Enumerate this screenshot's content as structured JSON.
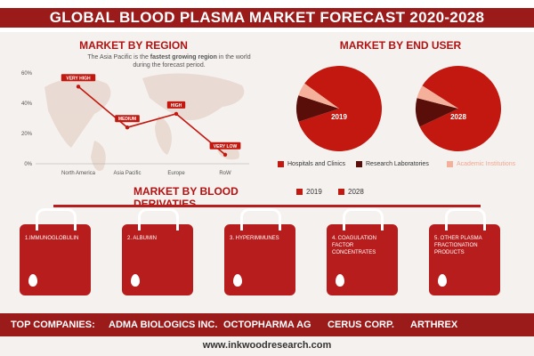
{
  "header": {
    "title": "GLOBAL BLOOD PLASMA MARKET FORECAST 2020-2028"
  },
  "region_section": {
    "title": "MARKET BY REGION",
    "note_prefix": "The Asia Pacific is the ",
    "note_bold": "fastest growing region",
    "note_suffix": " in the world during the forecast period."
  },
  "end_user_section": {
    "title": "MARKET BY END USER",
    "legend": [
      {
        "label": "Hospitals and Clinics",
        "color": "#c2180f"
      },
      {
        "label": "Research Laboratories",
        "color": "#5a0e0a"
      },
      {
        "label": "Academic Institutions",
        "color": "#f4b09a"
      }
    ]
  },
  "derivatives_section": {
    "title": "MARKET BY BLOOD DERIVATIES",
    "legend": [
      {
        "label": "2019",
        "color": "#c2180f"
      },
      {
        "label": "2028",
        "color": "#c2180f"
      }
    ],
    "bags": [
      "1.IMMUNOGLOBULIN",
      "2. ALBUMIN",
      "3. HYPERIMMUNES",
      "4. COAGULATION FACTOR CONCENTRATES",
      "5. OTHER PLASMA FRACTIONATION PRODUCTS"
    ]
  },
  "footer": {
    "label": "TOP COMPANIES:",
    "companies": [
      "ADMA BIOLOGICS INC.",
      "OCTOPHARMA AG",
      "CERUS CORP.",
      "ARTHREX"
    ],
    "website": "www.inkwoodresearch.com"
  },
  "chart_data": [
    {
      "type": "line",
      "title": "MARKET BY REGION",
      "categories": [
        "North America",
        "Asia Pacific",
        "Europe",
        "RoW"
      ],
      "values": [
        51,
        24,
        33,
        6
      ],
      "point_labels": [
        "VERY HIGH",
        "MEDIUM",
        "HIGH",
        "VERY LOW"
      ],
      "ylim": [
        0,
        60
      ],
      "yticks": [
        "0%",
        "20%",
        "40%",
        "60%"
      ],
      "color": "#c2180f"
    },
    {
      "type": "pie",
      "title": "2019",
      "labels": [
        "Hospitals and Clinics",
        "Research Laboratories",
        "Academic Institutions"
      ],
      "values": [
        85,
        10,
        5
      ],
      "colors": [
        "#c2180f",
        "#5a0e0a",
        "#f4b09a"
      ]
    },
    {
      "type": "pie",
      "title": "2028",
      "labels": [
        "Hospitals and Clinics",
        "Research Laboratories",
        "Academic Institutions"
      ],
      "values": [
        84,
        11,
        5
      ],
      "colors": [
        "#c2180f",
        "#5a0e0a",
        "#f4b09a"
      ]
    }
  ]
}
